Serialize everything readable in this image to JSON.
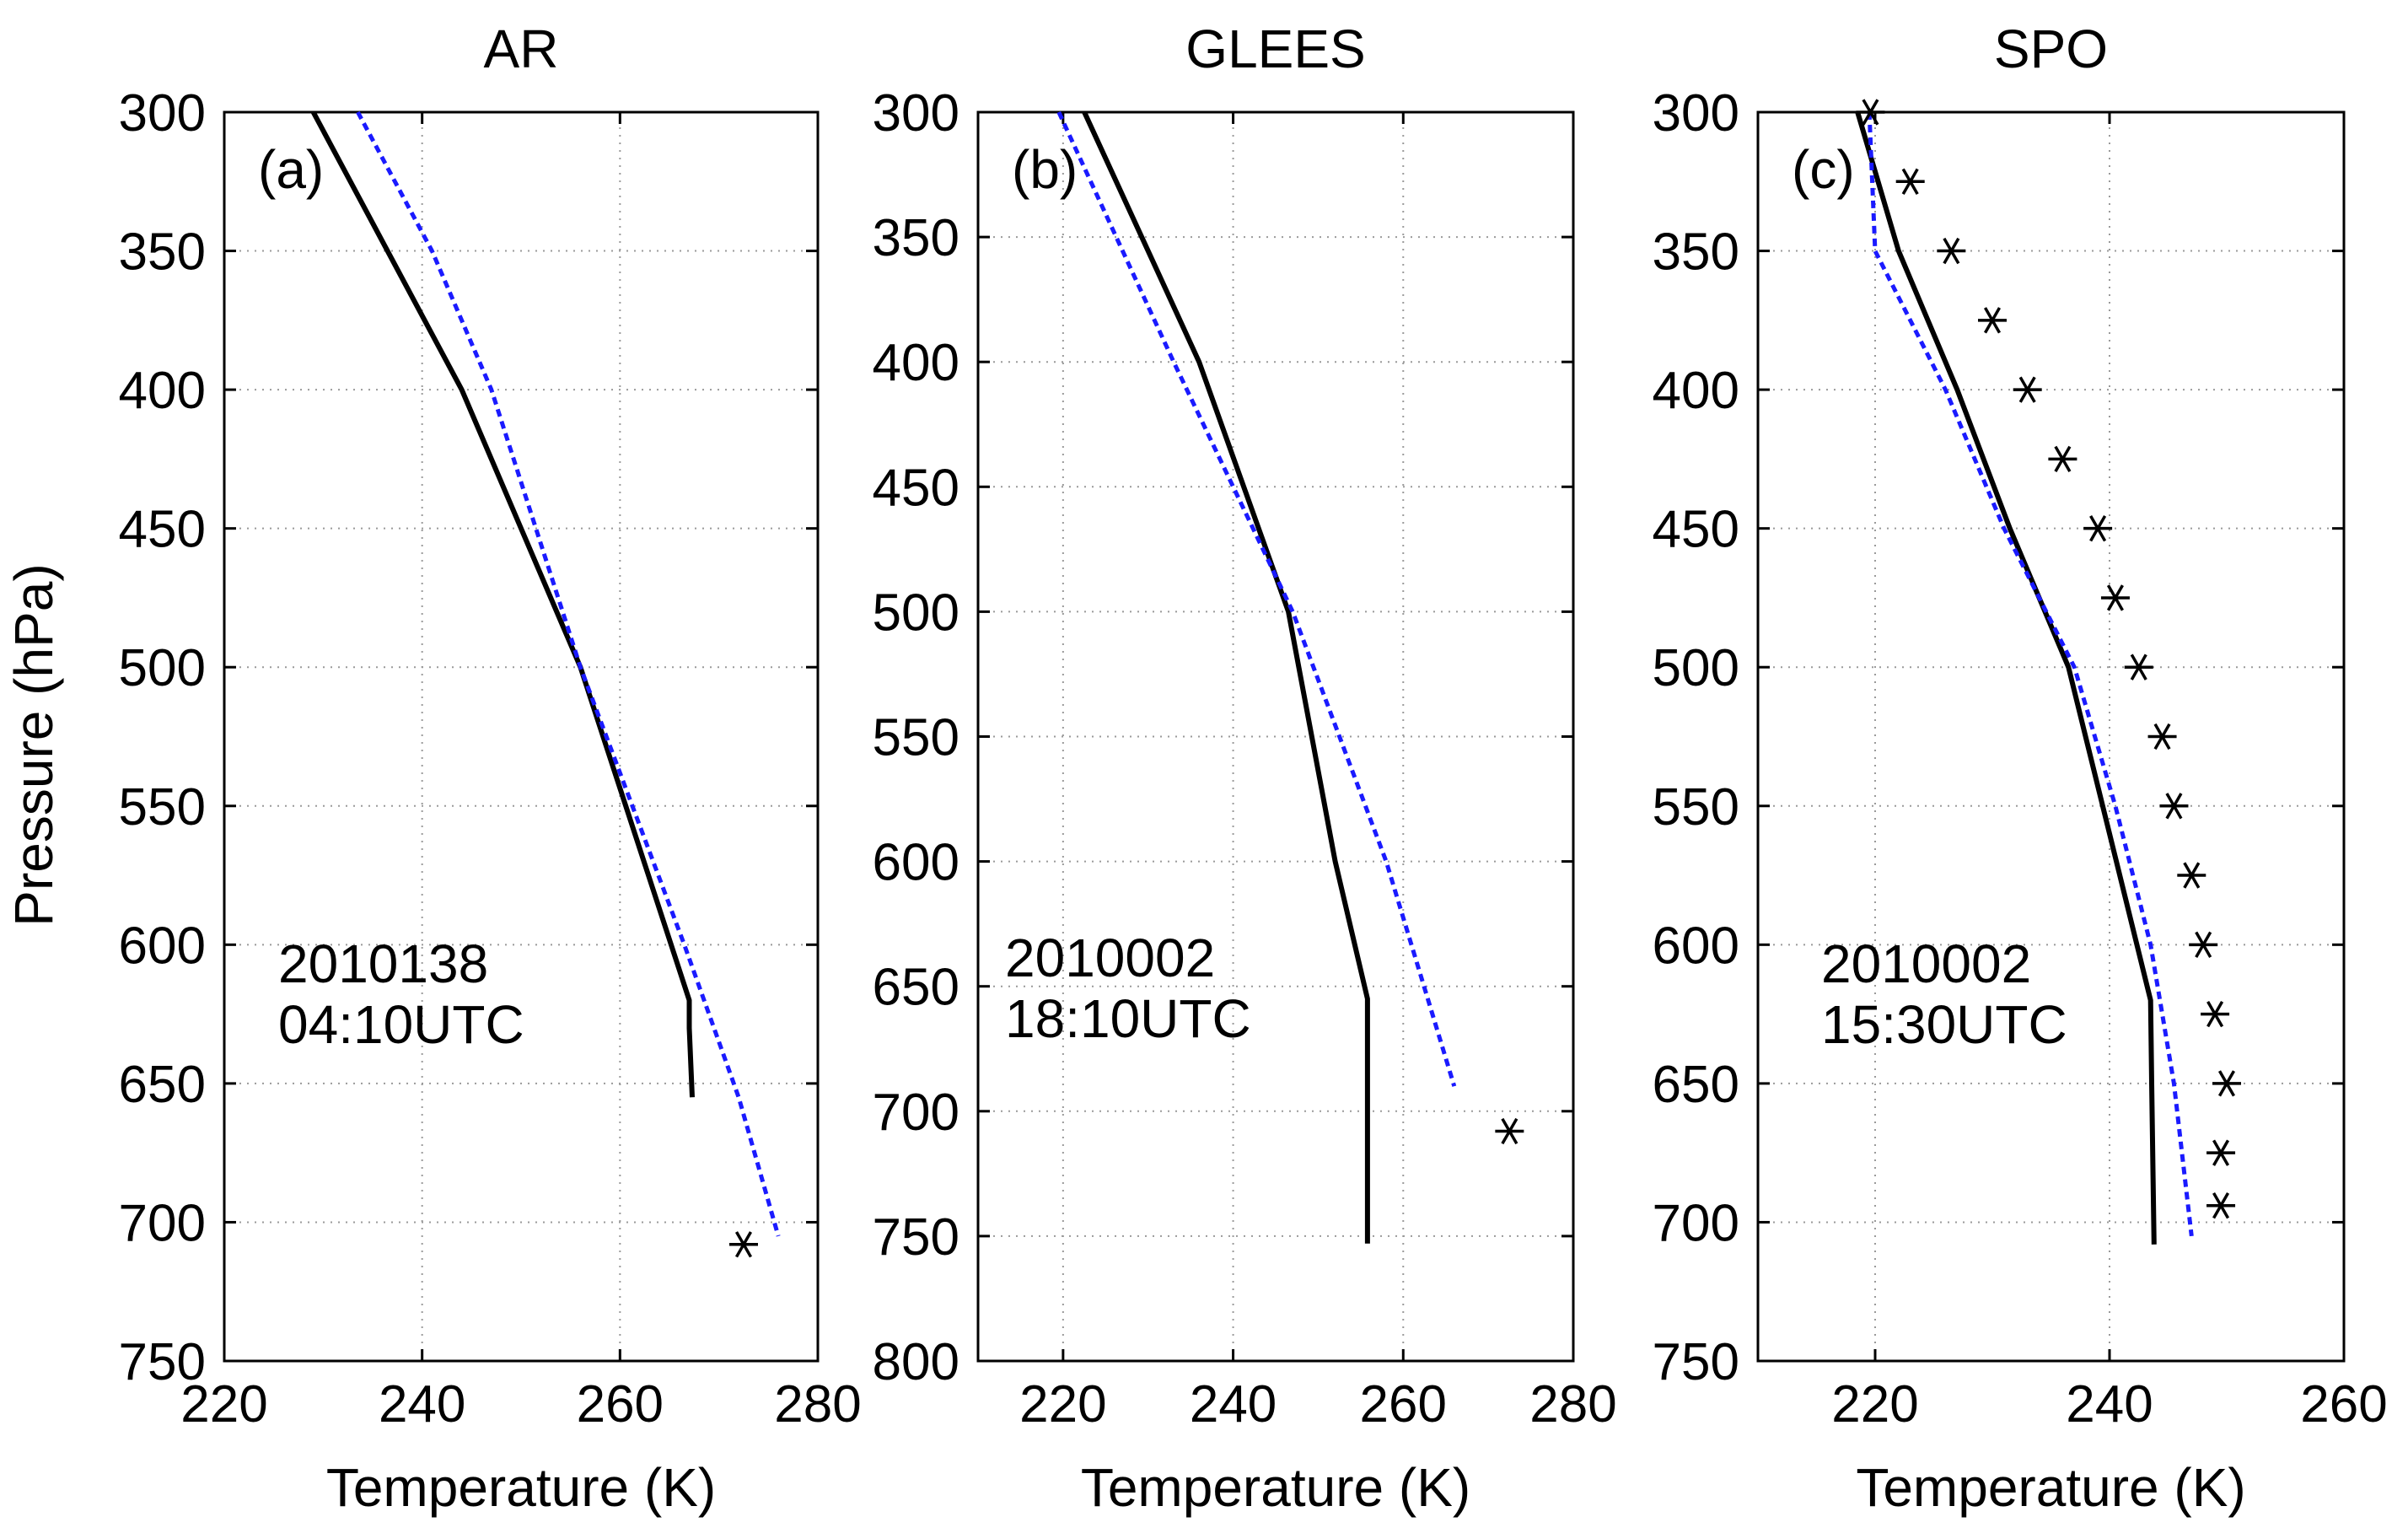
{
  "chart_data": [
    {
      "type": "line",
      "title": "AR",
      "panel_label": "(a)",
      "annotation": [
        "2010138",
        "04:10UTC"
      ],
      "xlabel": "Temperature (K)",
      "ylabel": "Pressure (hPa)",
      "xlim": [
        220,
        280
      ],
      "ylim": [
        300,
        750
      ],
      "y_inverted": true,
      "grid": true,
      "xticks": [
        220,
        240,
        260,
        280
      ],
      "yticks": [
        300,
        350,
        400,
        450,
        500,
        550,
        600,
        650,
        700,
        750
      ],
      "series": [
        {
          "name": "solid black",
          "style": "solid",
          "color": "#000000",
          "points": [
            [
              229,
              300
            ],
            [
              244,
              400
            ],
            [
              256,
              500
            ],
            [
              267,
              620
            ],
            [
              267,
              630
            ],
            [
              267.3,
              655
            ]
          ]
        },
        {
          "name": "dashed blue",
          "style": "dashed",
          "color": "#1a1aff",
          "points": [
            [
              233.5,
              300
            ],
            [
              241,
              350
            ],
            [
              247,
              400
            ],
            [
              256,
              500
            ],
            [
              266.5,
              600
            ],
            [
              272,
              655
            ],
            [
              276,
              705
            ]
          ]
        },
        {
          "name": "asterisk",
          "style": "marker",
          "color": "#000000",
          "points": [
            [
              272.5,
              708
            ]
          ]
        }
      ]
    },
    {
      "type": "line",
      "title": "GLEES",
      "panel_label": "(b)",
      "annotation": [
        "2010002",
        "18:10UTC"
      ],
      "xlabel": "Temperature (K)",
      "ylabel": "",
      "xlim": [
        210,
        280
      ],
      "ylim": [
        300,
        800
      ],
      "y_inverted": true,
      "grid": true,
      "xticks": [
        220,
        240,
        260,
        280
      ],
      "yticks": [
        300,
        350,
        400,
        450,
        500,
        550,
        600,
        650,
        700,
        750,
        800
      ],
      "series": [
        {
          "name": "solid black",
          "style": "solid",
          "color": "#000000",
          "points": [
            [
              222.5,
              300
            ],
            [
              236,
              400
            ],
            [
              246.5,
              500
            ],
            [
              252,
              600
            ],
            [
              255.8,
              655
            ],
            [
              255.8,
              753
            ]
          ]
        },
        {
          "name": "dashed blue",
          "style": "dashed",
          "color": "#1a1aff",
          "points": [
            [
              219.5,
              300
            ],
            [
              233,
              400
            ],
            [
              247,
              500
            ],
            [
              258,
              600
            ],
            [
              266,
              690
            ]
          ]
        },
        {
          "name": "asterisk",
          "style": "marker",
          "color": "#000000",
          "points": [
            [
              272.5,
              708
            ]
          ]
        }
      ]
    },
    {
      "type": "line",
      "title": "SPO",
      "panel_label": "(c)",
      "annotation": [
        "2010002",
        "15:30UTC"
      ],
      "xlabel": "Temperature (K)",
      "ylabel": "",
      "xlim": [
        210,
        260
      ],
      "ylim": [
        300,
        750
      ],
      "y_inverted": true,
      "grid": true,
      "xticks": [
        220,
        240,
        260
      ],
      "yticks": [
        300,
        350,
        400,
        450,
        500,
        550,
        600,
        650,
        700,
        750
      ],
      "series": [
        {
          "name": "solid black",
          "style": "solid",
          "color": "#000000",
          "points": [
            [
              218.5,
              300
            ],
            [
              222,
              350
            ],
            [
              227,
              400
            ],
            [
              231.5,
              450
            ],
            [
              236.5,
              500
            ],
            [
              240,
              560
            ],
            [
              243.5,
              620
            ],
            [
              243.6,
              650
            ],
            [
              243.8,
              708
            ]
          ]
        },
        {
          "name": "dashed blue",
          "style": "dashed",
          "color": "#1a1aff",
          "points": [
            [
              219.5,
              300
            ],
            [
              220,
              350
            ],
            [
              226,
              400
            ],
            [
              231,
              450
            ],
            [
              237,
              500
            ],
            [
              240.5,
              550
            ],
            [
              243.5,
              600
            ],
            [
              245.5,
              650
            ],
            [
              247,
              705
            ]
          ]
        },
        {
          "name": "asterisk",
          "style": "marker",
          "color": "#000000",
          "points": [
            [
              219.6,
              300
            ],
            [
              223,
              325
            ],
            [
              226.5,
              350
            ],
            [
              230,
              375
            ],
            [
              233,
              400
            ],
            [
              236,
              425
            ],
            [
              239,
              450
            ],
            [
              240.5,
              475
            ],
            [
              242.5,
              500
            ],
            [
              244.5,
              525
            ],
            [
              245.5,
              550
            ],
            [
              247,
              575
            ],
            [
              248,
              600
            ],
            [
              249,
              625
            ],
            [
              250,
              650
            ],
            [
              249.5,
              675
            ],
            [
              249.5,
              694
            ]
          ]
        }
      ]
    }
  ]
}
